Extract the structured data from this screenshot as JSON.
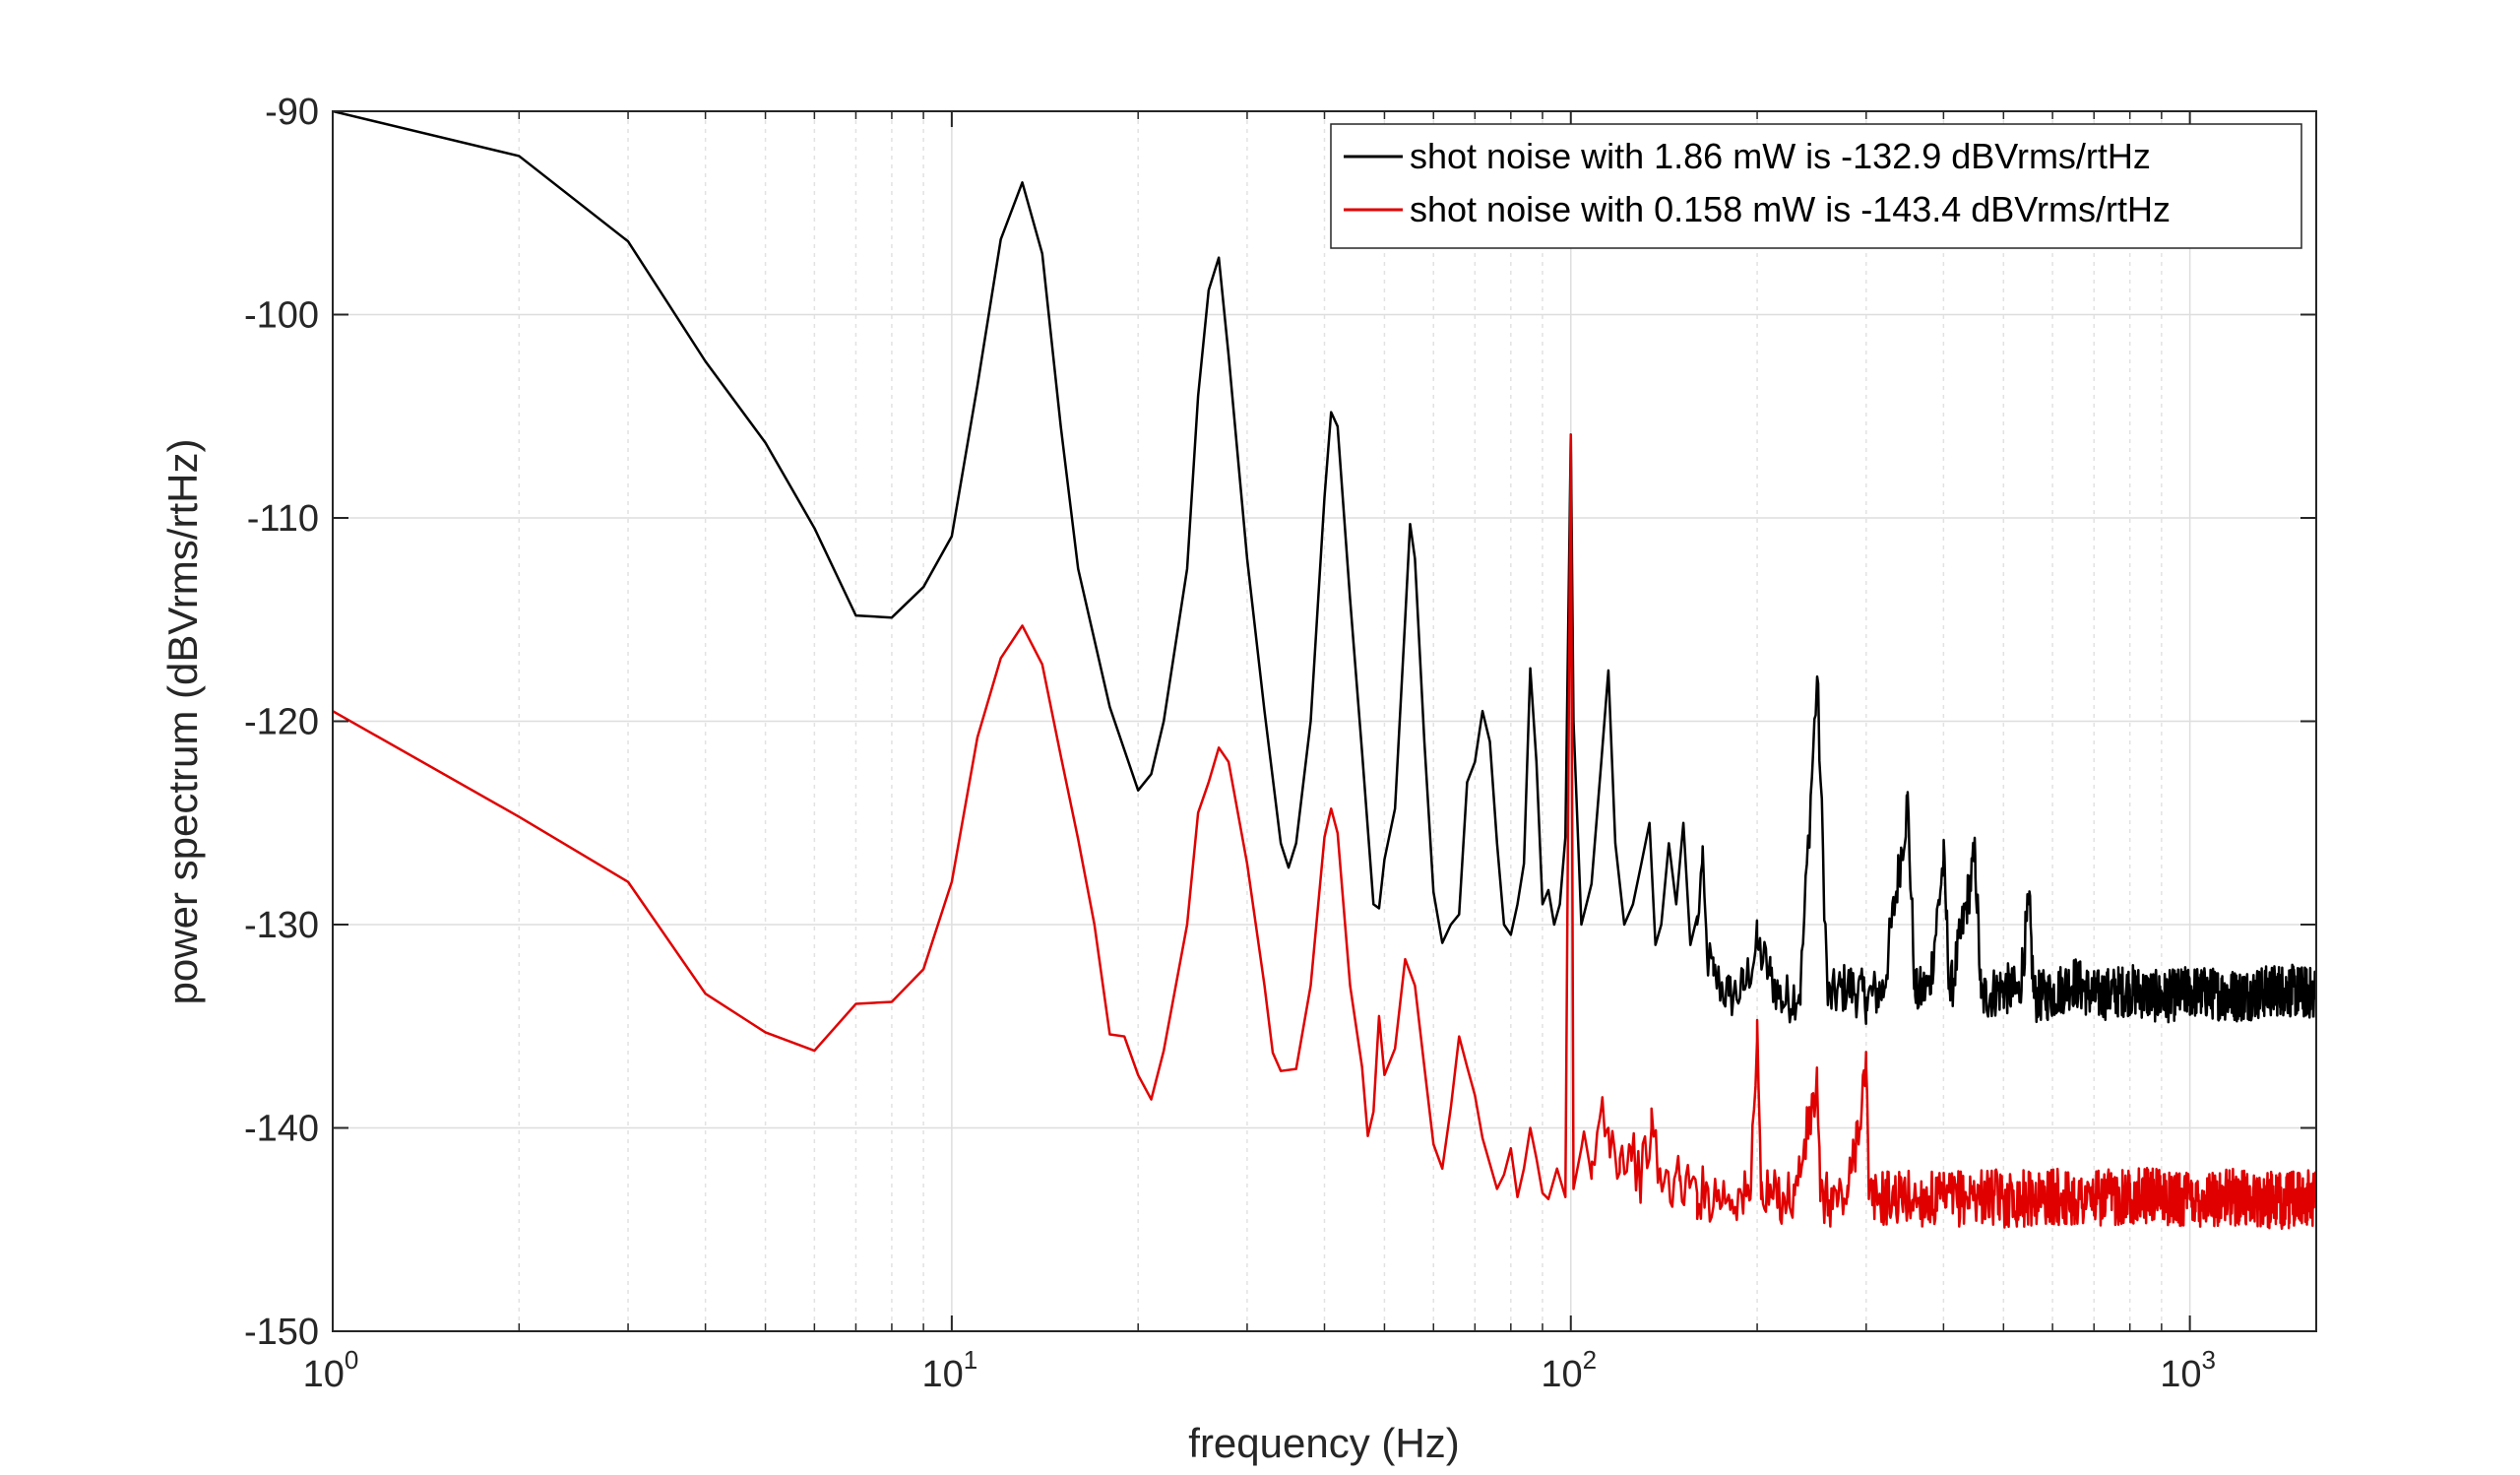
{
  "chart_data": {
    "type": "line",
    "xscale": "log",
    "xlim": [
      1,
      1600
    ],
    "ylim": [
      -150,
      -90
    ],
    "xlabel": "frequency (Hz)",
    "ylabel": "power spectrum (dBVrms/rtHz)",
    "grid": true,
    "legend_position": "top-right",
    "x_ticks": [
      {
        "value": 1,
        "base": "10",
        "exp": "0"
      },
      {
        "value": 10,
        "base": "10",
        "exp": "1"
      },
      {
        "value": 100,
        "base": "10",
        "exp": "2"
      },
      {
        "value": 1000,
        "base": "10",
        "exp": "3"
      }
    ],
    "y_ticks": [
      {
        "value": -90,
        "label": "-90"
      },
      {
        "value": -100,
        "label": "-100"
      },
      {
        "value": -110,
        "label": "-110"
      },
      {
        "value": -120,
        "label": "-120"
      },
      {
        "value": -130,
        "label": "-130"
      },
      {
        "value": -140,
        "label": "-140"
      },
      {
        "value": -150,
        "label": "-150"
      }
    ],
    "series": [
      {
        "name": "shot noise with 1.86 mW is -132.9 dBVrms/rtHz",
        "color": "#000000",
        "points": [
          [
            1,
            -90
          ],
          [
            2,
            -92.2
          ],
          [
            3,
            -96.4
          ],
          [
            4,
            -102.3
          ],
          [
            5,
            -106.3
          ],
          [
            6,
            -110.5
          ],
          [
            7,
            -114.8
          ],
          [
            8,
            -114.9
          ],
          [
            9,
            -113.4
          ],
          [
            10,
            -110.9
          ],
          [
            11,
            -103.5
          ],
          [
            12,
            -96.3
          ],
          [
            13,
            -93.5
          ],
          [
            14,
            -97
          ],
          [
            15,
            -105.5
          ],
          [
            16,
            -112.5
          ],
          [
            18,
            -119.3
          ],
          [
            20,
            -123.4
          ],
          [
            21,
            -122.6
          ],
          [
            22,
            -120
          ],
          [
            24,
            -112.5
          ],
          [
            25,
            -104
          ],
          [
            26,
            -98.8
          ],
          [
            27,
            -97.2
          ],
          [
            28,
            -102
          ],
          [
            30,
            -112
          ],
          [
            32,
            -119.5
          ],
          [
            34,
            -126
          ],
          [
            35,
            -127.2
          ],
          [
            36,
            -126
          ],
          [
            38,
            -120
          ],
          [
            40,
            -109
          ],
          [
            41,
            -104.8
          ],
          [
            42,
            -105.5
          ],
          [
            44,
            -114
          ],
          [
            46,
            -121.5
          ],
          [
            48,
            -129
          ],
          [
            49,
            -129.2
          ],
          [
            50,
            -126.8
          ],
          [
            52,
            -124.3
          ],
          [
            54,
            -115
          ],
          [
            55,
            -110.3
          ],
          [
            56,
            -112
          ],
          [
            58,
            -121
          ],
          [
            60,
            -128.4
          ],
          [
            62,
            -130.9
          ],
          [
            64,
            -130
          ],
          [
            66,
            -129.5
          ],
          [
            68,
            -123
          ],
          [
            70,
            -122
          ],
          [
            72,
            -119.5
          ],
          [
            74,
            -121
          ],
          [
            76,
            -126
          ],
          [
            78,
            -130
          ],
          [
            80,
            -130.5
          ],
          [
            82,
            -129
          ],
          [
            84,
            -127
          ],
          [
            86,
            -117.4
          ],
          [
            88,
            -122
          ],
          [
            90,
            -129
          ],
          [
            92,
            -128.3
          ],
          [
            94,
            -130
          ],
          [
            96,
            -129
          ],
          [
            98,
            -125.7
          ],
          [
            100,
            -105.9
          ],
          [
            101,
            -120
          ],
          [
            104,
            -130
          ],
          [
            106,
            -129
          ],
          [
            108,
            -128
          ],
          [
            112,
            -122
          ],
          [
            115,
            -117.5
          ],
          [
            118,
            -126
          ],
          [
            122,
            -130
          ],
          [
            126,
            -129
          ],
          [
            130,
            -127
          ],
          [
            134,
            -125
          ],
          [
            137,
            -131
          ],
          [
            140,
            -130
          ],
          [
            144,
            -126
          ],
          [
            148,
            -129
          ],
          [
            152,
            -125
          ],
          [
            156,
            -131
          ],
          [
            160,
            -130
          ],
          [
            163,
            -127
          ],
          [
            166,
            -131.5
          ],
          [
            170,
            -132.5
          ],
          [
            180,
            -133.5
          ],
          [
            190,
            -133.2
          ],
          [
            200,
            -131
          ],
          [
            210,
            -132.5
          ],
          [
            220,
            -133.8
          ],
          [
            235,
            -133.2
          ],
          [
            250,
            -117.8
          ],
          [
            260,
            -133.7
          ],
          [
            280,
            -133
          ],
          [
            300,
            -133.6
          ],
          [
            320,
            -133.2
          ],
          [
            350,
            -124
          ],
          [
            360,
            -133.5
          ],
          [
            380,
            -133
          ],
          [
            400,
            -126.8
          ],
          [
            410,
            -133.5
          ],
          [
            450,
            -126.6
          ],
          [
            460,
            -133.6
          ],
          [
            500,
            -133.1
          ],
          [
            530,
            -133.4
          ],
          [
            550,
            -129
          ],
          [
            560,
            -133.6
          ],
          [
            600,
            -133.4
          ],
          [
            650,
            -132.8
          ],
          [
            700,
            -133.5
          ],
          [
            800,
            -133.2
          ],
          [
            900,
            -133.6
          ],
          [
            1000,
            -133.3
          ],
          [
            1200,
            -133.5
          ],
          [
            1400,
            -133.2
          ],
          [
            1600,
            -133.4
          ]
        ],
        "noise_from_hz": 160,
        "noise_amplitude_db": 1.3
      },
      {
        "name": "shot noise with 0.158 mW is -143.4 dBVrms/rtHz",
        "color": "#e00000",
        "points": [
          [
            1,
            -119.5
          ],
          [
            2,
            -124.7
          ],
          [
            3,
            -127.9
          ],
          [
            4,
            -133.4
          ],
          [
            5,
            -135.3
          ],
          [
            6,
            -136.2
          ],
          [
            7,
            -133.9
          ],
          [
            8,
            -133.8
          ],
          [
            9,
            -132.2
          ],
          [
            10,
            -127.9
          ],
          [
            11,
            -120.8
          ],
          [
            12,
            -116.9
          ],
          [
            13,
            -115.3
          ],
          [
            14,
            -117.2
          ],
          [
            15,
            -121.7
          ],
          [
            16,
            -125.8
          ],
          [
            17,
            -130
          ],
          [
            18,
            -135.4
          ],
          [
            19,
            -135.5
          ],
          [
            20,
            -137.4
          ],
          [
            21,
            -138.6
          ],
          [
            22,
            -136.2
          ],
          [
            24,
            -130
          ],
          [
            25,
            -124.5
          ],
          [
            26,
            -123
          ],
          [
            27,
            -121.3
          ],
          [
            28,
            -122
          ],
          [
            30,
            -127
          ],
          [
            32,
            -133
          ],
          [
            33,
            -136.3
          ],
          [
            34,
            -137.2
          ],
          [
            36,
            -137.1
          ],
          [
            38,
            -133
          ],
          [
            40,
            -125.7
          ],
          [
            41,
            -124.3
          ],
          [
            42,
            -125.5
          ],
          [
            44,
            -133
          ],
          [
            46,
            -137
          ],
          [
            47,
            -140.4
          ],
          [
            48,
            -139.2
          ],
          [
            49,
            -134.5
          ],
          [
            50,
            -137.4
          ],
          [
            52,
            -136.1
          ],
          [
            54,
            -131.7
          ],
          [
            56,
            -133
          ],
          [
            58,
            -137
          ],
          [
            60,
            -140.8
          ],
          [
            62,
            -142
          ],
          [
            64,
            -139
          ],
          [
            66,
            -135.5
          ],
          [
            68,
            -137
          ],
          [
            70,
            -138.4
          ],
          [
            72,
            -140.5
          ],
          [
            76,
            -143
          ],
          [
            78,
            -142.3
          ],
          [
            80,
            -141
          ],
          [
            82,
            -143.4
          ],
          [
            84,
            -142
          ],
          [
            86,
            -140
          ],
          [
            88,
            -141.5
          ],
          [
            90,
            -143.2
          ],
          [
            92,
            -143.5
          ],
          [
            95,
            -142
          ],
          [
            98,
            -143.4
          ],
          [
            100,
            -105.9
          ],
          [
            101,
            -143
          ],
          [
            104,
            -141
          ],
          [
            108,
            -142.5
          ],
          [
            112,
            -139
          ],
          [
            115,
            -140
          ],
          [
            120,
            -141.5
          ],
          [
            125,
            -141
          ],
          [
            130,
            -142.5
          ],
          [
            135,
            -140
          ],
          [
            140,
            -142.8
          ],
          [
            150,
            -142.6
          ],
          [
            160,
            -143.2
          ],
          [
            180,
            -143.3
          ],
          [
            195,
            -143.5
          ],
          [
            200,
            -134.7
          ],
          [
            203,
            -143.5
          ],
          [
            230,
            -143.3
          ],
          [
            250,
            -137.9
          ],
          [
            253,
            -143.6
          ],
          [
            280,
            -143.4
          ],
          [
            300,
            -137
          ],
          [
            303,
            -143.5
          ],
          [
            340,
            -143.4
          ],
          [
            400,
            -143.6
          ],
          [
            450,
            -143.3
          ],
          [
            500,
            -143.5
          ],
          [
            600,
            -143.4
          ],
          [
            700,
            -143.5
          ],
          [
            800,
            -143.3
          ],
          [
            1000,
            -143.5
          ],
          [
            1200,
            -143.4
          ],
          [
            1400,
            -143.6
          ],
          [
            1600,
            -143.4
          ]
        ],
        "noise_from_hz": 105,
        "noise_amplitude_db": 1.4
      }
    ]
  }
}
